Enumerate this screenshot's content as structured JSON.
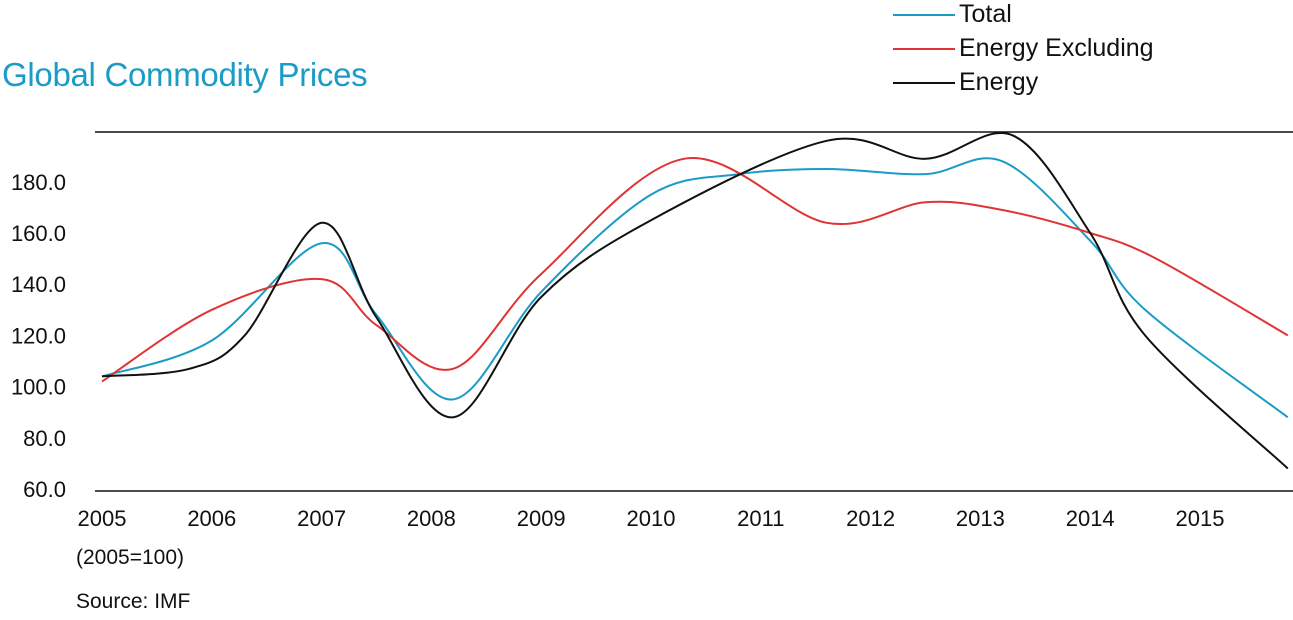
{
  "chart_data": {
    "type": "line",
    "title": "Global Commodity Prices",
    "note": "(2005=100)",
    "source": "Source: IMF",
    "x_labels": [
      "2005",
      "2006",
      "2007",
      "2008",
      "2009",
      "2010",
      "2011",
      "2012",
      "2013",
      "2014",
      "2015"
    ],
    "y_ticks": [
      "60.0",
      "80.0",
      "100.0",
      "120.0",
      "140.0",
      "160.0",
      "180.0"
    ],
    "ylim": [
      60,
      200
    ],
    "xlim": [
      2005,
      2015.9
    ],
    "grid": false,
    "legend_position": "top-right",
    "series": [
      {
        "name": "Total",
        "color": "#1a9cc6",
        "points": [
          [
            2005,
            104
          ],
          [
            2006,
            118
          ],
          [
            2007,
            156
          ],
          [
            2007.5,
            128
          ],
          [
            2008.2,
            95
          ],
          [
            2009,
            137
          ],
          [
            2010,
            175
          ],
          [
            2010.8,
            183
          ],
          [
            2011.6,
            185
          ],
          [
            2012.5,
            183
          ],
          [
            2013.2,
            188
          ],
          [
            2014,
            157
          ],
          [
            2014.5,
            130
          ],
          [
            2015.8,
            88
          ]
        ]
      },
      {
        "name": "Energy Excluding",
        "color": "#e03434",
        "points": [
          [
            2005,
            102
          ],
          [
            2006,
            130
          ],
          [
            2007,
            142
          ],
          [
            2007.5,
            124
          ],
          [
            2008.2,
            107
          ],
          [
            2009,
            144
          ],
          [
            2010.3,
            189
          ],
          [
            2011.6,
            164
          ],
          [
            2012.5,
            172
          ],
          [
            2013.2,
            169
          ],
          [
            2014,
            160
          ],
          [
            2014.6,
            150
          ],
          [
            2015.8,
            120
          ]
        ]
      },
      {
        "name": "Energy",
        "color": "#111111",
        "points": [
          [
            2005,
            104
          ],
          [
            2005.8,
            107
          ],
          [
            2006.3,
            120
          ],
          [
            2007,
            164
          ],
          [
            2007.5,
            127
          ],
          [
            2008.2,
            88
          ],
          [
            2009,
            135
          ],
          [
            2010,
            165
          ],
          [
            2011.6,
            196
          ],
          [
            2012.5,
            189
          ],
          [
            2013.3,
            198
          ],
          [
            2014,
            160
          ],
          [
            2014.5,
            120
          ],
          [
            2015.8,
            68
          ]
        ]
      }
    ]
  }
}
